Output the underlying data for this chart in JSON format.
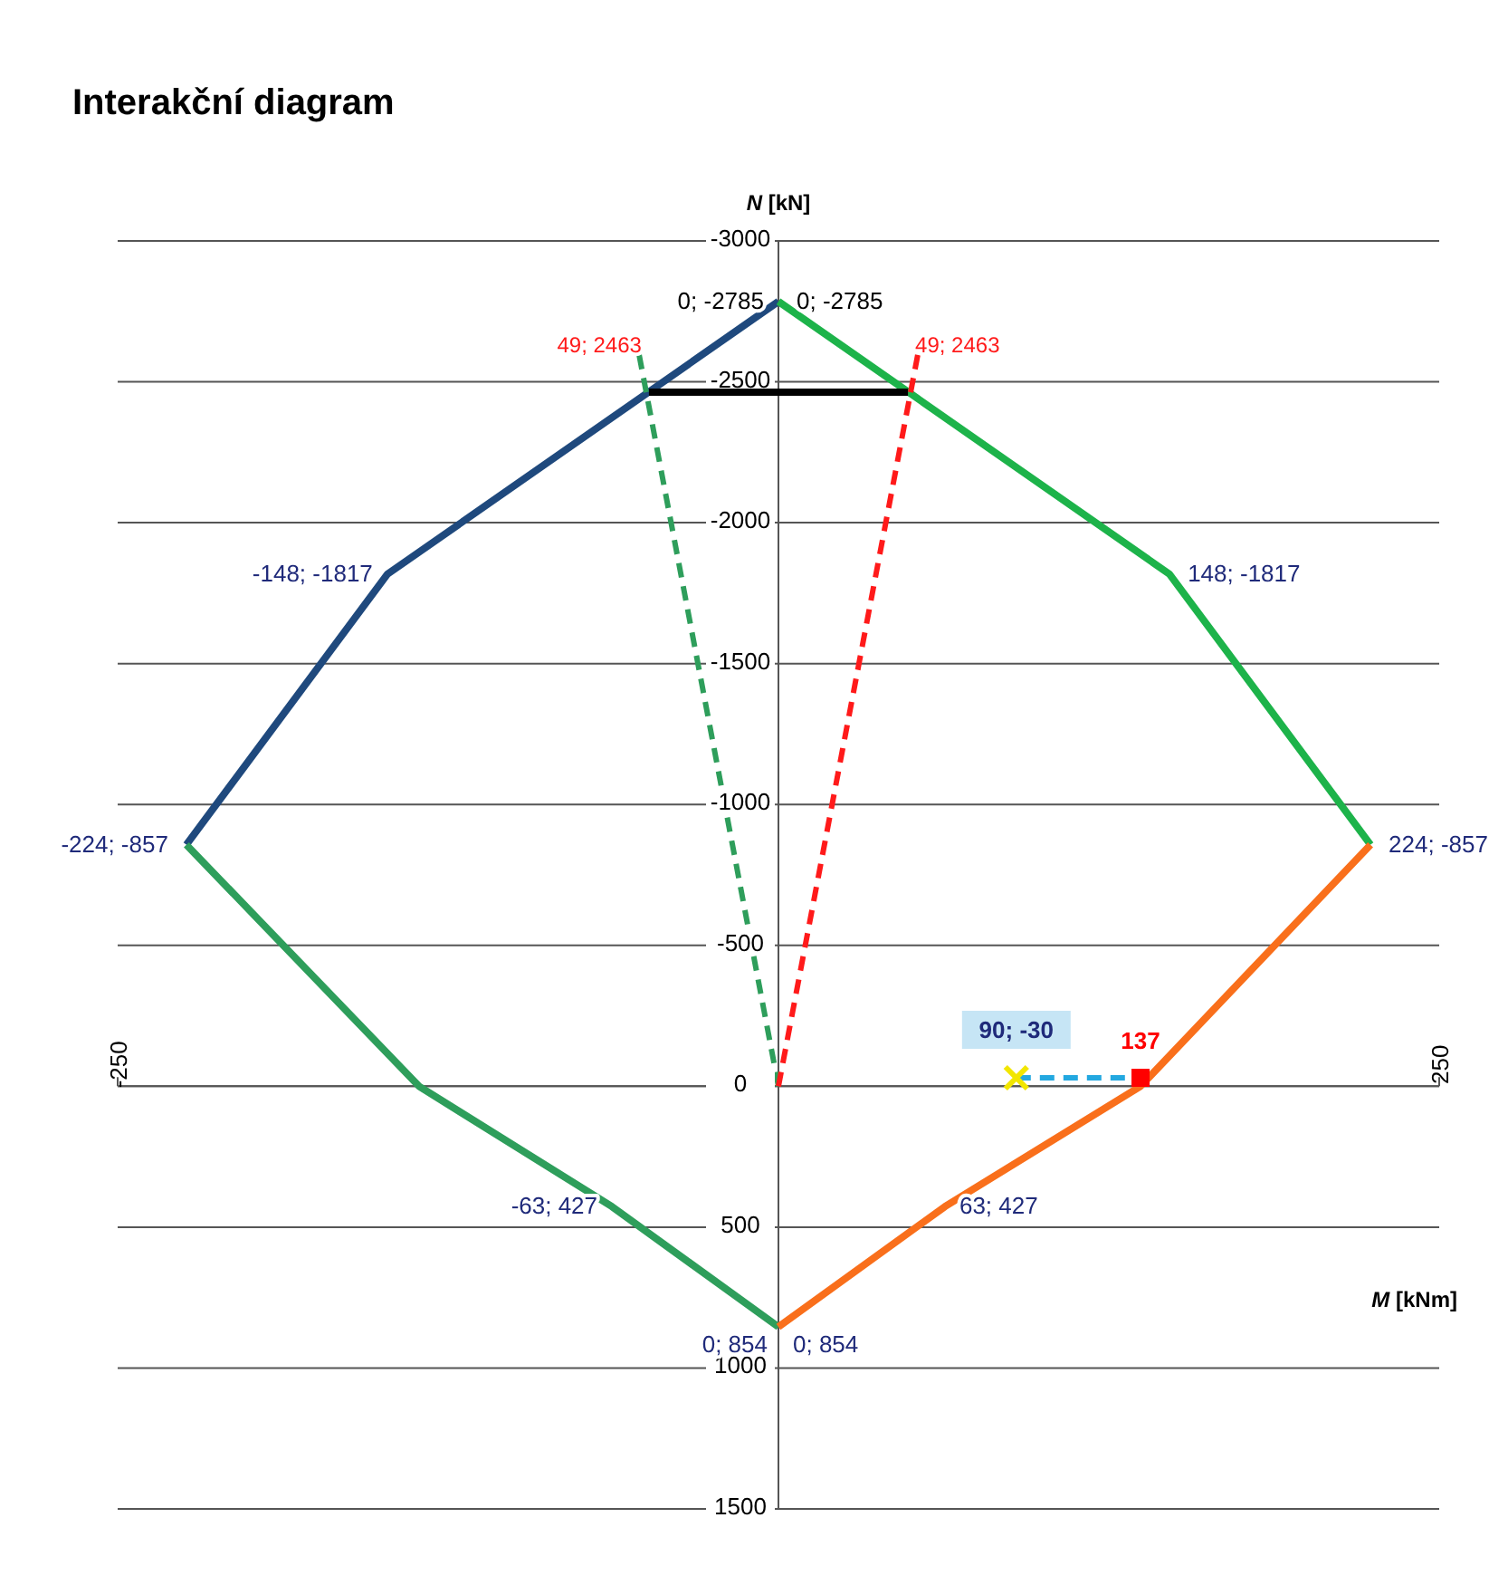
{
  "chart_data": {
    "type": "line",
    "title": "Interakční diagram",
    "xlabel": "M [kNm]",
    "ylabel": "N [kN]",
    "xlim": [
      -250,
      250
    ],
    "xticks": [
      -250,
      250
    ],
    "ylim": [
      1500,
      -3000
    ],
    "yticks": [
      -3000,
      -2500,
      -2000,
      -1500,
      -1000,
      -500,
      0,
      500,
      1000,
      1500
    ],
    "grid": "y",
    "series": [
      {
        "color": "#1f497d",
        "x": [
          0,
          -148,
          -224
        ],
        "values": [
          -2785,
          -1817,
          -857
        ]
      },
      {
        "color": "#2e9e5b",
        "x": [
          -224,
          -136,
          -63,
          0
        ],
        "values": [
          -857,
          0,
          427,
          854
        ]
      },
      {
        "color": "#1db34a",
        "x": [
          0,
          148,
          224
        ],
        "values": [
          -2785,
          -1817,
          -857
        ]
      },
      {
        "color": "#f96f1b",
        "x": [
          224,
          137,
          63,
          0
        ],
        "values": [
          -857,
          0,
          427,
          854
        ]
      },
      {
        "color": "#000000",
        "x": [
          -49,
          49
        ],
        "values": [
          -2463,
          -2463
        ]
      },
      {
        "color": "#2e9e5b",
        "line_style": "dashed",
        "x": [
          0,
          -53
        ],
        "values": [
          0,
          -2610
        ]
      },
      {
        "color": "#ff1a1a",
        "line_style": "dashed",
        "x": [
          0,
          53
        ],
        "values": [
          0,
          -2610
        ]
      },
      {
        "color": "#23a8e0",
        "line_style": "dashed",
        "x": [
          90,
          137
        ],
        "values": [
          -30,
          -30
        ]
      },
      {
        "type": "scatter",
        "marker": "cross",
        "color": "#f2e600",
        "x": [
          90
        ],
        "values": [
          -30
        ]
      },
      {
        "type": "scatter",
        "marker": "square",
        "color": "#ff0000",
        "x": [
          137
        ],
        "values": [
          -30
        ]
      }
    ],
    "annotations": [
      {
        "text": "0; -2785",
        "x": 0,
        "y": -2785
      },
      {
        "text": "0; -2785",
        "x": 0,
        "y": -2785
      },
      {
        "text": "-148; -1817",
        "x": -148,
        "y": -1817
      },
      {
        "text": "148; -1817",
        "x": 148,
        "y": -1817
      },
      {
        "text": "-224; -857",
        "x": -224,
        "y": -857
      },
      {
        "text": "224; -857",
        "x": 224,
        "y": -857
      },
      {
        "text": "-63; 427",
        "x": -63,
        "y": 427
      },
      {
        "text": "63; 427",
        "x": 63,
        "y": 427
      },
      {
        "text": "0; 854",
        "x": 0,
        "y": 854
      },
      {
        "text": "0; 854",
        "x": 0,
        "y": 854
      },
      {
        "text": "49; 2463",
        "x": -49,
        "y": -2463
      },
      {
        "text": "49; 2463",
        "x": 49,
        "y": -2463
      },
      {
        "text": "90; -30",
        "x": 90,
        "y": -30
      },
      {
        "text": "137",
        "x": 137,
        "y": -30
      }
    ]
  }
}
